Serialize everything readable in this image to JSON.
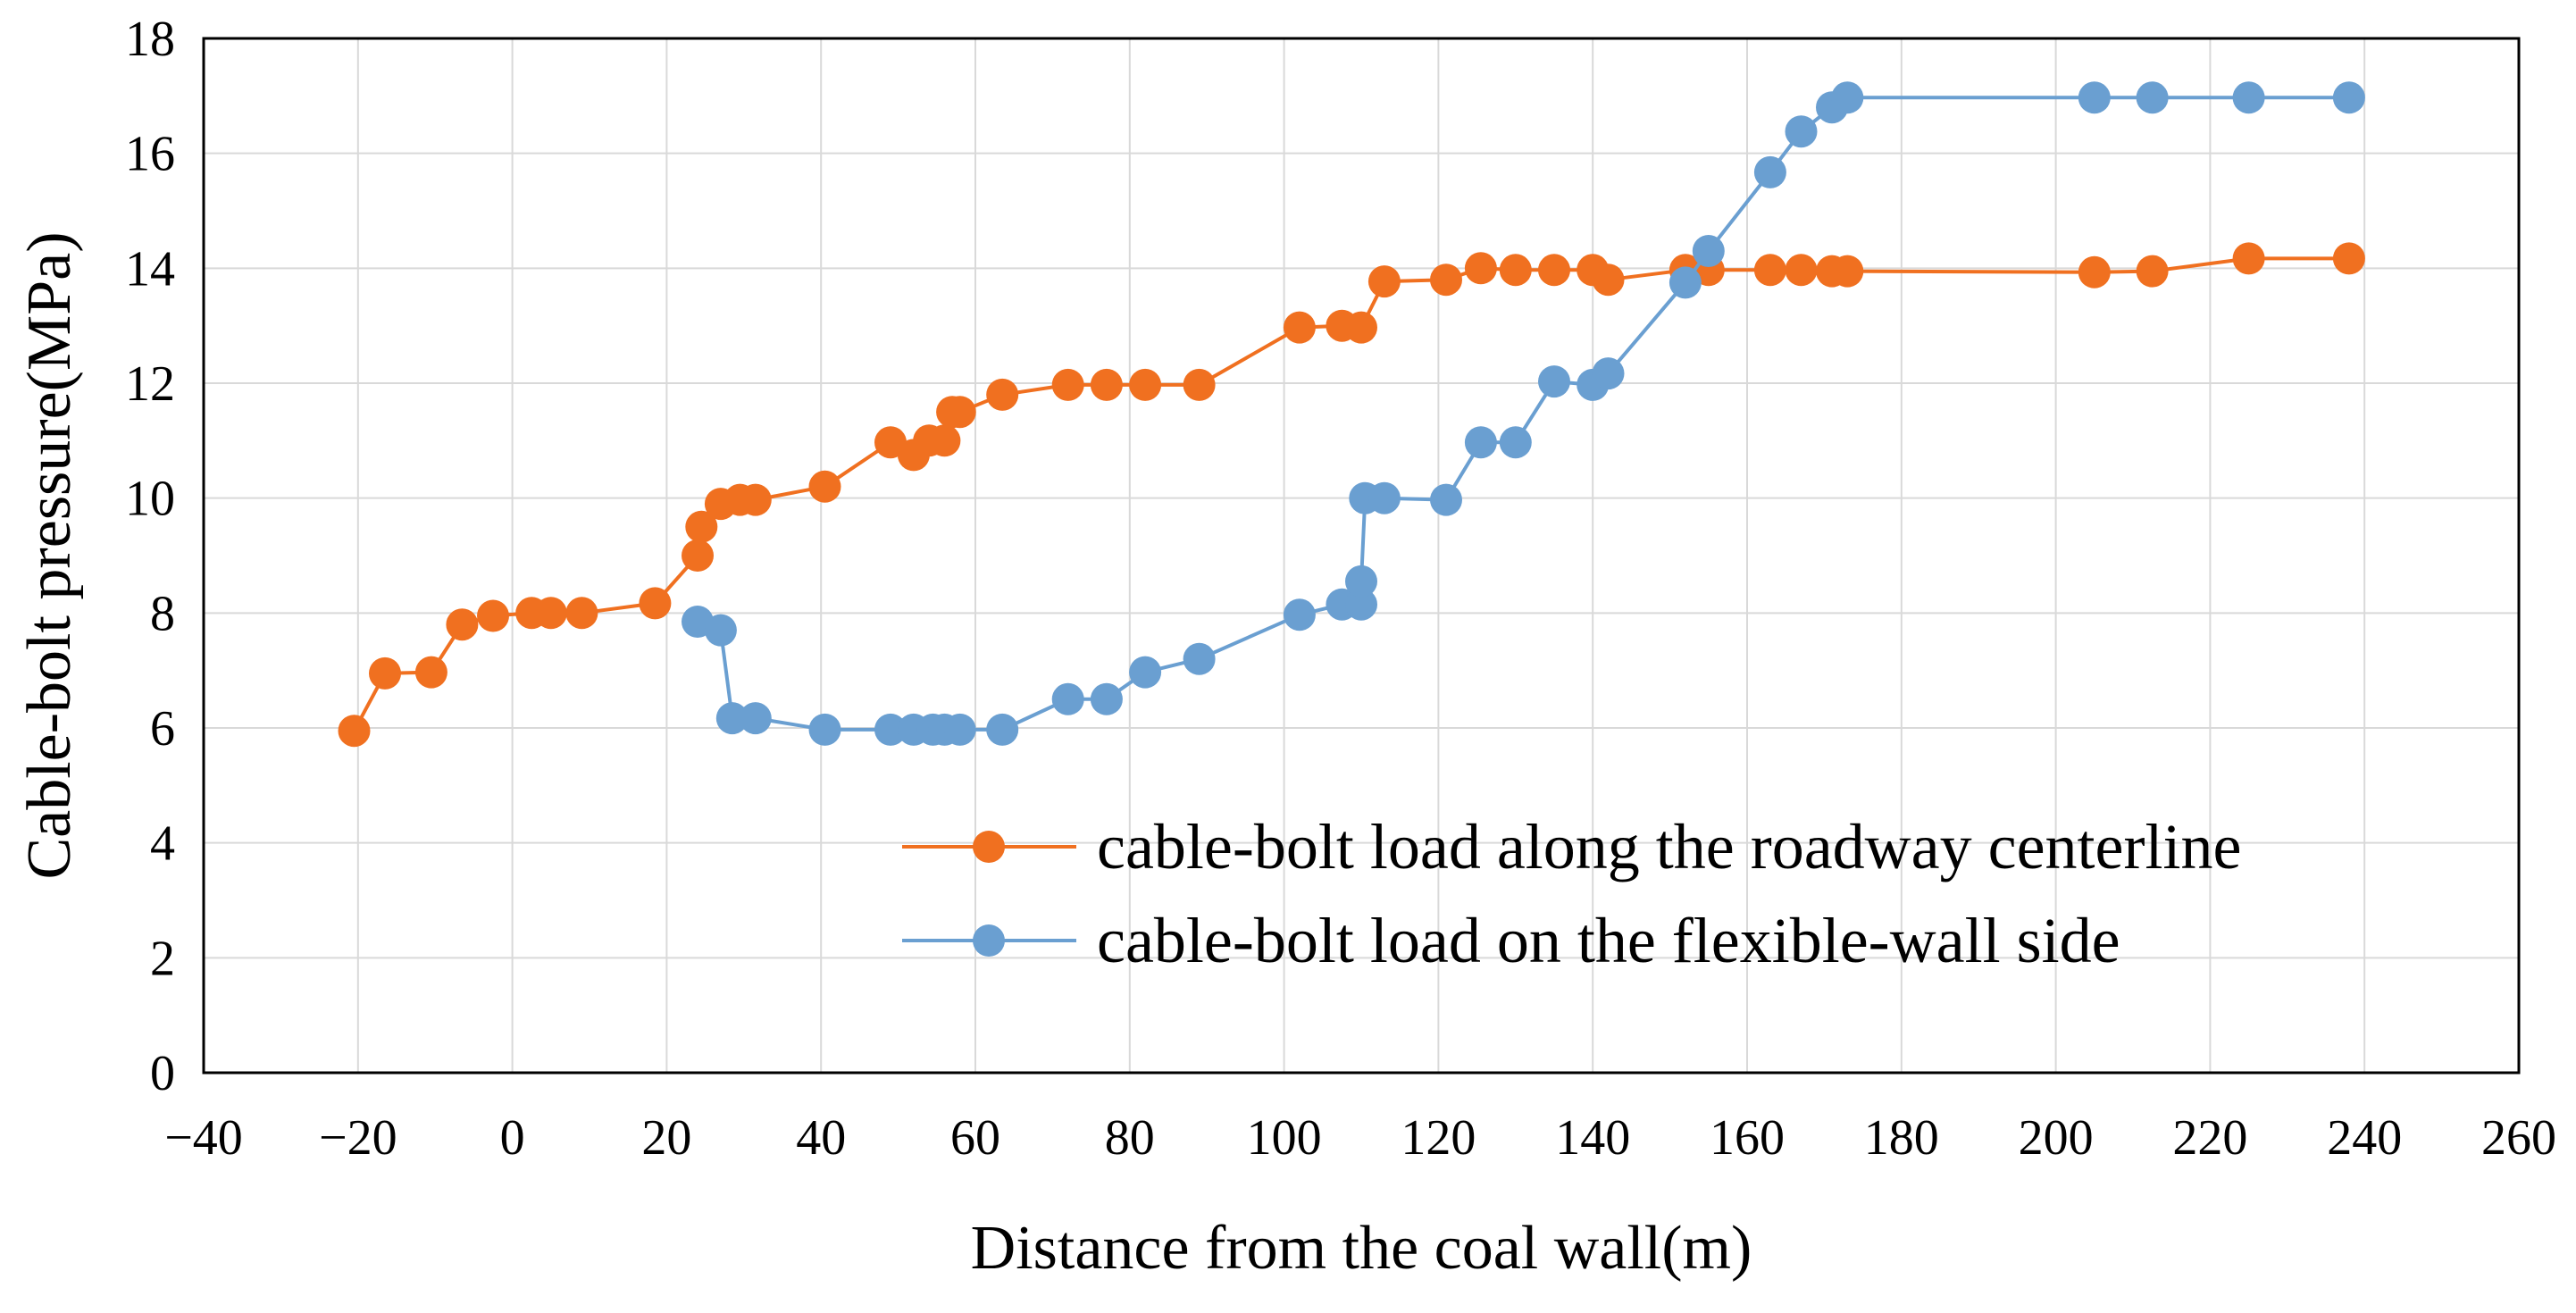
{
  "chart_data": {
    "type": "line",
    "title": "",
    "xlabel": "Distance from the coal wall(m)",
    "ylabel": "Cable-bolt pressure(MPa)",
    "xlim": [
      -40,
      260
    ],
    "ylim": [
      0,
      18
    ],
    "xticks": [
      -40,
      -20,
      0,
      20,
      40,
      60,
      80,
      100,
      120,
      140,
      160,
      180,
      200,
      220,
      240,
      260
    ],
    "yticks": [
      0,
      2,
      4,
      6,
      8,
      10,
      12,
      14,
      16,
      18
    ],
    "xtick_labels": [
      "−40",
      "−20",
      "0",
      "20",
      "40",
      "60",
      "80",
      "100",
      "120",
      "140",
      "160",
      "180",
      "200",
      "220",
      "240",
      "260"
    ],
    "ytick_labels": [
      "0",
      "2",
      "4",
      "6",
      "8",
      "10",
      "12",
      "14",
      "16",
      "18"
    ],
    "grid": true,
    "legend_position": "lower-right",
    "series": [
      {
        "name": "cable-bolt load along the roadway centerline",
        "color": "#f07020",
        "x": [
          -20.5,
          -16.5,
          -10.5,
          -6.5,
          -2.5,
          2.5,
          5,
          9,
          18.5,
          24,
          24.5,
          27,
          29.5,
          31.5,
          40.5,
          49,
          52,
          54,
          56,
          57,
          58,
          63.5,
          72,
          77,
          82,
          89,
          102,
          107.5,
          110,
          113,
          121,
          125.5,
          130,
          135,
          140,
          142,
          152,
          155,
          163,
          167,
          171,
          173,
          205,
          212.5,
          225,
          238
        ],
        "y": [
          5.95,
          6.95,
          6.97,
          7.8,
          7.95,
          8.0,
          8.0,
          8.0,
          8.17,
          9.0,
          9.5,
          9.9,
          9.97,
          9.97,
          10.2,
          10.97,
          10.75,
          11.0,
          11.0,
          11.5,
          11.5,
          11.8,
          11.97,
          11.97,
          11.97,
          11.97,
          12.97,
          13.0,
          12.97,
          13.77,
          13.8,
          14.0,
          13.97,
          13.97,
          13.97,
          13.8,
          13.97,
          13.97,
          13.97,
          13.97,
          13.95,
          13.95,
          13.93,
          13.95,
          14.17,
          14.17
        ]
      },
      {
        "name": "cable-bolt load on the flexible-wall side",
        "color": "#6a9fd1",
        "x": [
          24,
          27,
          28.5,
          31.5,
          40.5,
          49,
          52,
          54.5,
          56,
          58,
          63.5,
          72,
          77,
          82,
          89,
          102,
          107.5,
          110,
          110,
          110.5,
          113,
          121,
          125.5,
          130,
          135,
          140,
          142,
          152,
          155,
          163,
          167,
          171,
          173,
          205,
          212.5,
          225,
          238
        ],
        "y": [
          7.85,
          7.7,
          6.17,
          6.17,
          5.97,
          5.97,
          5.97,
          5.97,
          5.97,
          5.97,
          5.97,
          6.5,
          6.5,
          6.97,
          7.2,
          7.97,
          8.15,
          8.15,
          8.55,
          10.0,
          10.0,
          9.97,
          10.97,
          10.97,
          12.03,
          11.97,
          12.17,
          13.75,
          14.3,
          15.67,
          16.38,
          16.8,
          16.97,
          16.97,
          16.97,
          16.97,
          16.97
        ]
      }
    ]
  }
}
